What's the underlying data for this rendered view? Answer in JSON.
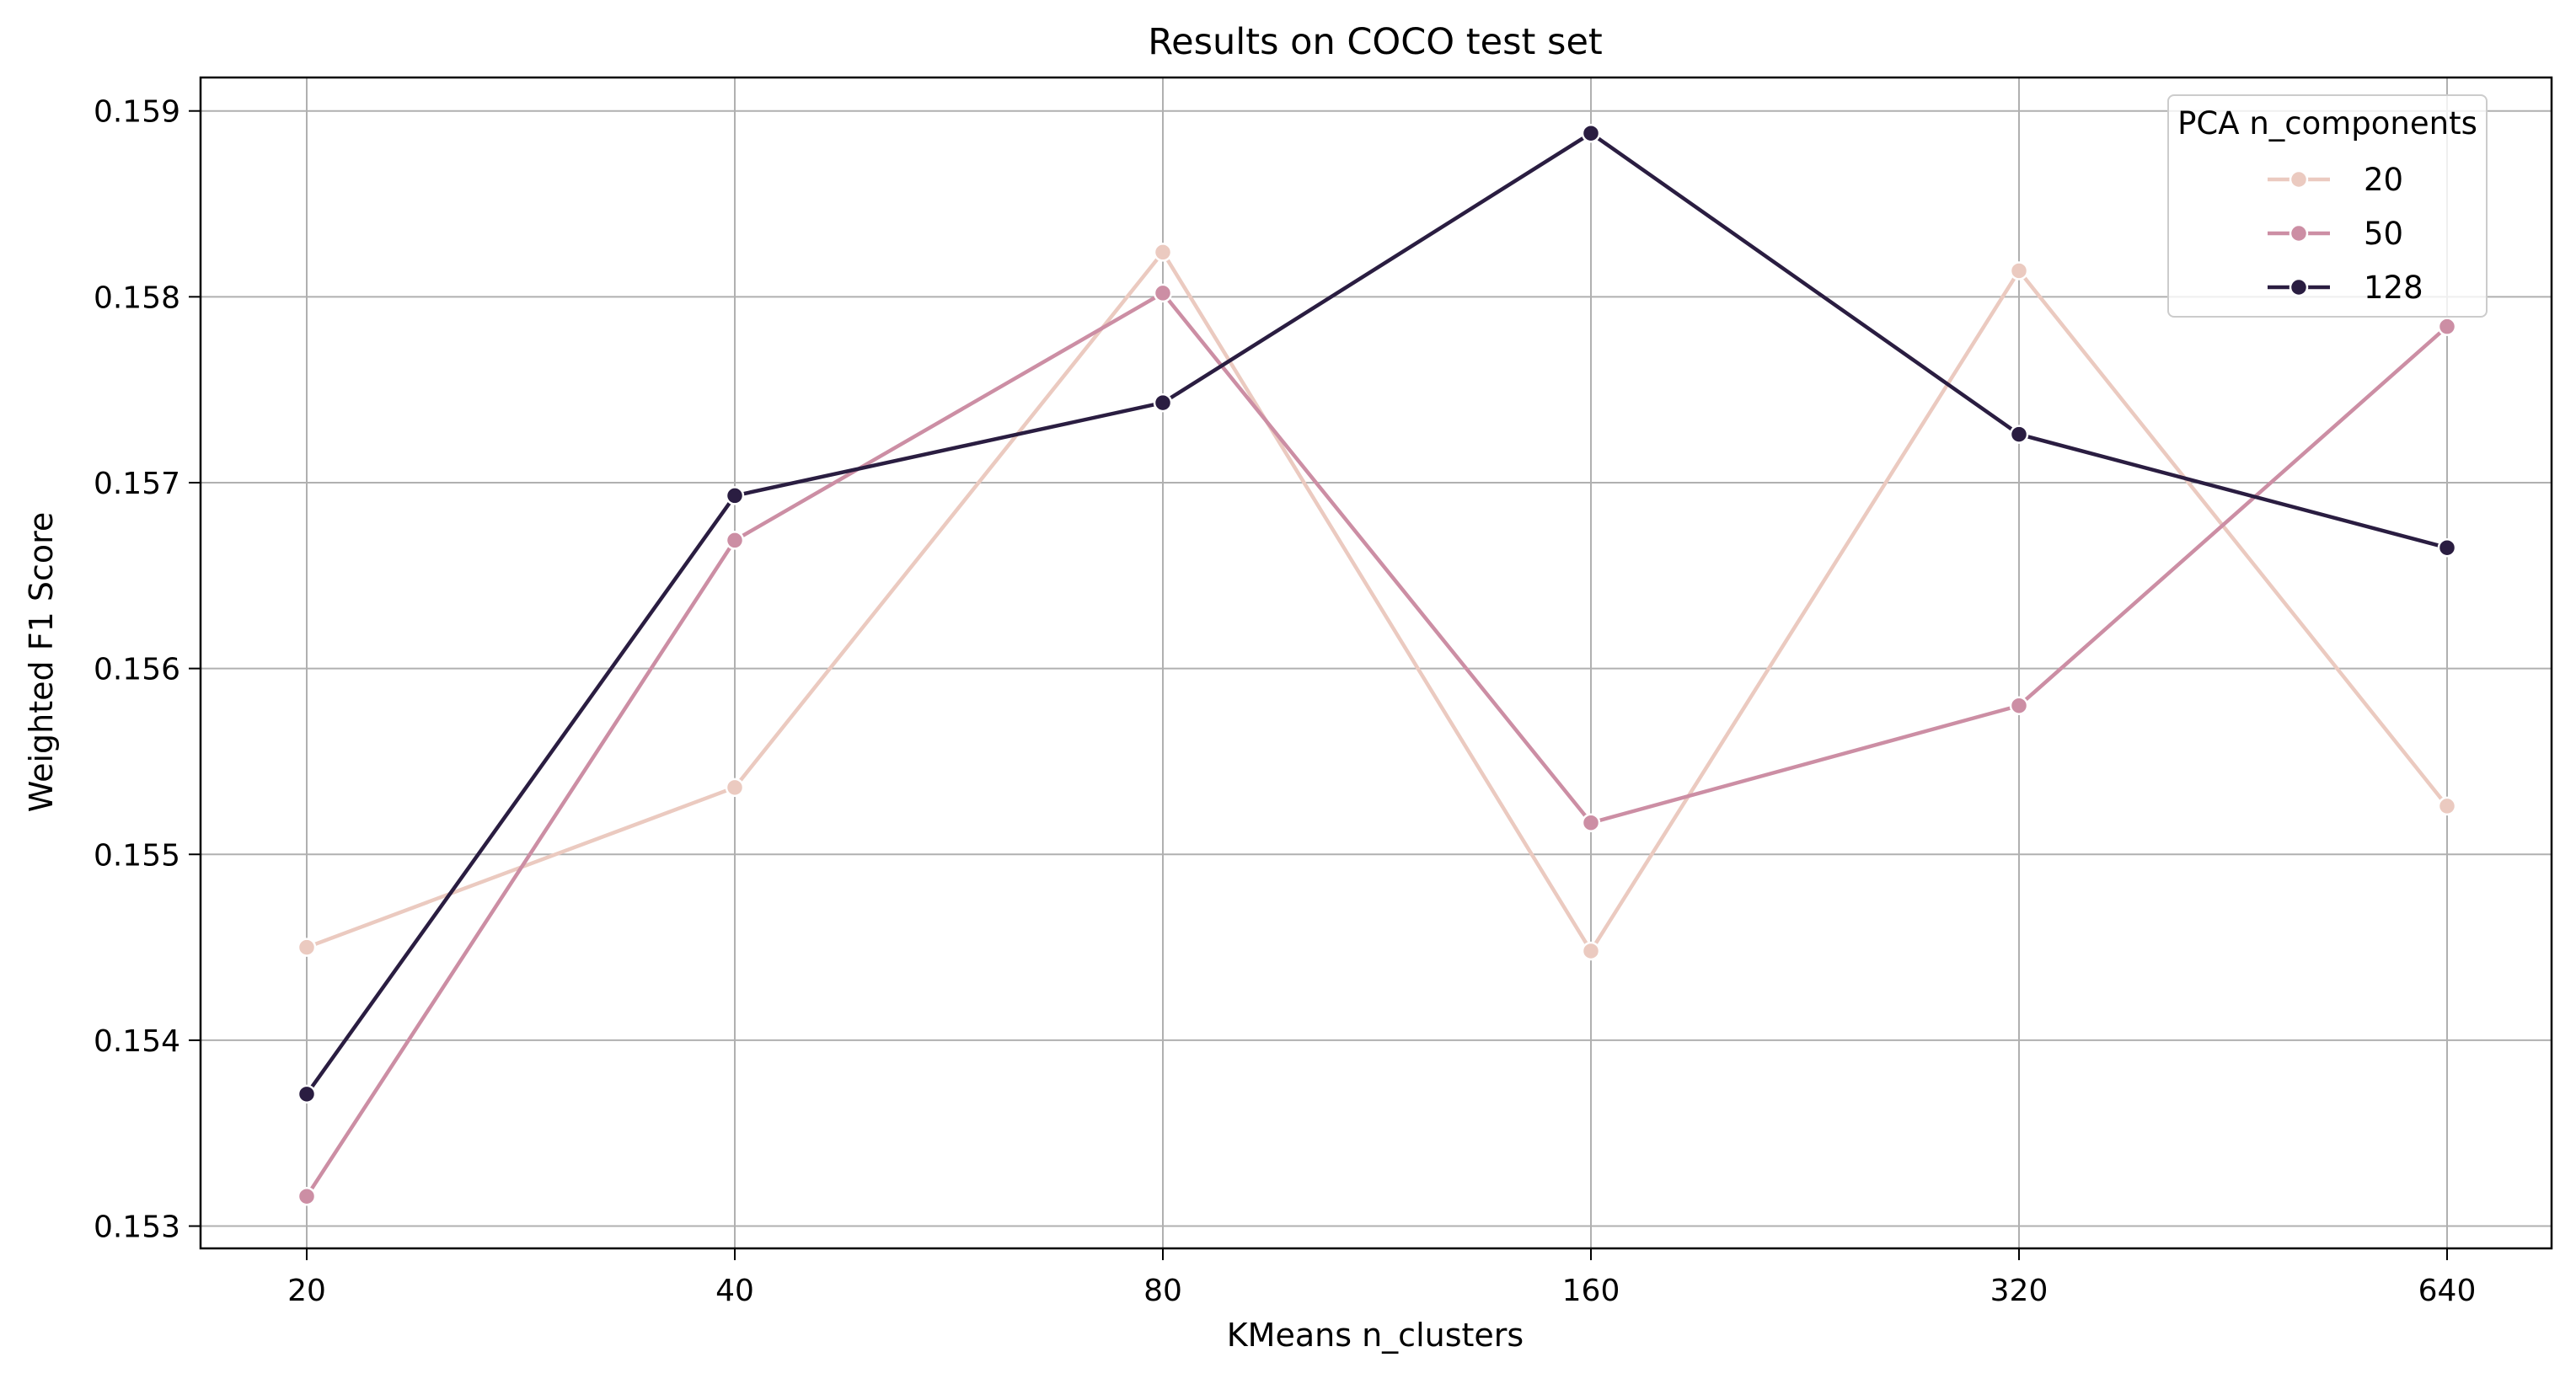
{
  "chart_data": {
    "type": "line",
    "title": "Results on COCO test set",
    "xlabel": "KMeans n_clusters",
    "ylabel": "Weighted F1 Score",
    "categories": [
      "20",
      "40",
      "80",
      "160",
      "320",
      "640"
    ],
    "yticks": [
      "0.153",
      "0.154",
      "0.155",
      "0.156",
      "0.157",
      "0.158",
      "0.159"
    ],
    "ylim": [
      0.15288,
      0.15918
    ],
    "grid": true,
    "legend": {
      "title": "PCA n_components",
      "placement": "top-right"
    },
    "series": [
      {
        "name": "20",
        "color": "#ebcac0",
        "values": [
          0.1545,
          0.15536,
          0.15824,
          0.15448,
          0.15814,
          0.15526
        ]
      },
      {
        "name": "50",
        "color": "#cc8ea4",
        "values": [
          0.15316,
          0.15669,
          0.15802,
          0.15517,
          0.1558,
          0.15784
        ]
      },
      {
        "name": "128",
        "color": "#2a1d41",
        "values": [
          0.15371,
          0.15693,
          0.15743,
          0.15888,
          0.15726,
          0.15665
        ]
      }
    ]
  }
}
